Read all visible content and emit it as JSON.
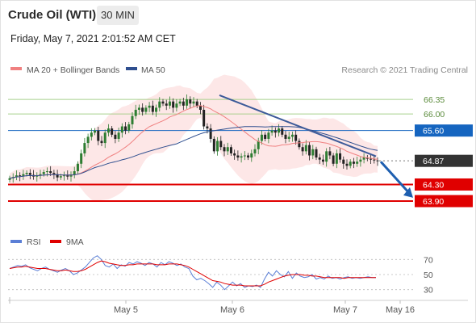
{
  "header": {
    "title": "Crude Oil (WTI)",
    "timeframe": "30 MIN",
    "datetime": "Friday, May 7, 2021 2:01:52 AM CET",
    "copyright": "Research © 2021 Trading Central"
  },
  "colors": {
    "bollinger": "#f08080",
    "bands_fill": "#fde3e3",
    "ma50": "#2f4f8f",
    "resistance_green": "#a8d08d",
    "pivot_blue": "#1565c0",
    "support_red": "#e00000",
    "trendline": "#3c5a99",
    "candle_up": "#2e7d32",
    "candle_down": "#222222",
    "rsi": "#5b7fd6",
    "rsi_ma": "#e00000",
    "price_tag": "#333333"
  },
  "chart_data": [
    {
      "type": "candlestick",
      "legend": [
        "MA 20 + Bollinger Bands",
        "MA 50"
      ],
      "price_levels": [
        {
          "label": "66.35",
          "value": 66.35,
          "kind": "resistance"
        },
        {
          "label": "66.00",
          "value": 66.0,
          "kind": "resistance"
        },
        {
          "label": "65.60",
          "value": 65.6,
          "kind": "pivot"
        },
        {
          "label": "64.87",
          "value": 64.87,
          "kind": "last"
        },
        {
          "label": "64.30",
          "value": 64.3,
          "kind": "support"
        },
        {
          "label": "63.90",
          "value": 63.9,
          "kind": "support"
        }
      ],
      "ylim": [
        63.2,
        66.8
      ],
      "x_ticks": [
        "May 5",
        "May 6",
        "May 7",
        "May 16"
      ],
      "close_path": [
        64.45,
        64.48,
        64.52,
        64.5,
        64.55,
        64.58,
        64.53,
        64.49,
        64.52,
        64.55,
        64.6,
        64.62,
        64.58,
        64.55,
        64.47,
        64.5,
        64.52,
        64.49,
        64.54,
        64.62,
        64.8,
        65.05,
        65.3,
        65.45,
        65.55,
        65.6,
        65.35,
        65.3,
        65.55,
        65.65,
        65.5,
        65.4,
        65.55,
        65.7,
        65.6,
        65.75,
        65.95,
        66.1,
        66.15,
        66.05,
        66.15,
        66.2,
        66.05,
        66.15,
        66.3,
        66.25,
        66.2,
        66.3,
        66.15,
        66.25,
        66.3,
        66.2,
        66.35,
        66.25,
        66.3,
        66.2,
        66.1,
        65.7,
        65.65,
        65.4,
        65.1,
        65.35,
        65.2,
        65.1,
        65.2,
        65.05,
        65.0,
        64.95,
        64.98,
        65.0,
        64.95,
        65.05,
        65.15,
        65.35,
        65.5,
        65.4,
        65.55,
        65.6,
        65.55,
        65.65,
        65.5,
        65.4,
        65.45,
        65.5,
        65.35,
        65.2,
        65.1,
        65.25,
        65.0,
        65.15,
        64.95,
        64.9,
        64.85,
        65.1,
        65.0,
        64.8,
        65.05,
        64.9,
        64.8,
        64.75,
        64.85,
        64.8,
        64.85,
        64.9,
        64.95,
        64.92,
        64.9,
        64.88,
        64.87
      ],
      "trendline": {
        "start": 66.45,
        "end": 64.98
      },
      "forecast_arrow": {
        "from": 64.85,
        "to": 63.98
      }
    },
    {
      "type": "line",
      "legend": [
        "RSI",
        "9MA"
      ],
      "ylim": [
        20,
        80
      ],
      "y_ticks": [
        70,
        50,
        30
      ],
      "rsi": [
        58,
        60,
        62,
        61,
        63,
        59,
        57,
        55,
        58,
        60,
        57,
        55,
        53,
        56,
        58,
        55,
        50,
        52,
        56,
        60,
        66,
        72,
        75,
        70,
        62,
        60,
        64,
        58,
        63,
        61,
        66,
        64,
        67,
        65,
        62,
        66,
        64,
        60,
        66,
        63,
        67,
        65,
        62,
        64,
        60,
        58,
        48,
        43,
        45,
        42,
        38,
        33,
        40,
        36,
        30,
        35,
        40,
        35,
        38,
        33,
        35,
        34,
        36,
        33,
        44,
        53,
        48,
        55,
        50,
        47,
        54,
        45,
        52,
        48,
        46,
        47,
        50,
        44,
        46,
        44,
        48,
        45,
        46,
        44,
        46,
        47,
        45,
        46,
        45,
        46,
        47,
        46,
        46
      ],
      "ma9": [
        58,
        59,
        60,
        60,
        61,
        60,
        59,
        58,
        58,
        58,
        57,
        56,
        55,
        55,
        56,
        55,
        54,
        54,
        55,
        57,
        60,
        63,
        66,
        68,
        67,
        65,
        64,
        63,
        62,
        62,
        63,
        63,
        64,
        64,
        64,
        64,
        64,
        63,
        63,
        63,
        64,
        64,
        64,
        63,
        62,
        60,
        57,
        54,
        51,
        48,
        45,
        42,
        41,
        40,
        38,
        37,
        36,
        36,
        36,
        35,
        35,
        35,
        35,
        35,
        37,
        40,
        42,
        44,
        46,
        48,
        49,
        50,
        50,
        50,
        49,
        49,
        48,
        48,
        47,
        46,
        46,
        46,
        46,
        46,
        45,
        46,
        46,
        46,
        46,
        46,
        46,
        46,
        46
      ]
    }
  ]
}
